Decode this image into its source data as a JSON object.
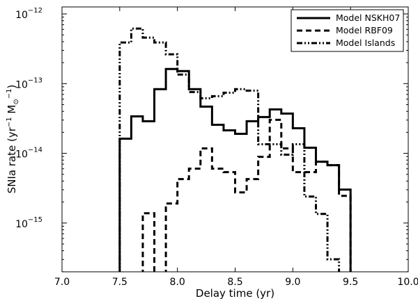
{
  "chart_data": {
    "type": "line",
    "subtype": "step-histogram",
    "xlabel": "Delay time (yr)",
    "ylabel_parts": {
      "main": "SNIa rate (yr",
      "exp1": "−1",
      "mid": " M",
      "sun": "⊙",
      "exp2": "−1",
      "end": ")"
    },
    "xlim": [
      7.0,
      10.0
    ],
    "ylim_log10": [
      -15.7,
      -11.9
    ],
    "yscale": "log",
    "x_ticks": [
      {
        "value": 7.0,
        "label": "7.0"
      },
      {
        "value": 7.5,
        "label": "7.5"
      },
      {
        "value": 8.0,
        "label": "8.0"
      },
      {
        "value": 8.5,
        "label": "8.5"
      },
      {
        "value": 9.0,
        "label": "9.0"
      },
      {
        "value": 9.5,
        "label": "9.5"
      },
      {
        "value": 10.0,
        "label": "10.0"
      }
    ],
    "y_ticks": [
      {
        "exp": -15,
        "base": "10",
        "sup": "−15"
      },
      {
        "exp": -14,
        "base": "10",
        "sup": "−14"
      },
      {
        "exp": -13,
        "base": "10",
        "sup": "−13"
      },
      {
        "exp": -12,
        "base": "10",
        "sup": "−12"
      }
    ],
    "legend_position": "top-right",
    "series": [
      {
        "name": "Model NSKH07",
        "style": "solid",
        "bins": [
          {
            "x0": 7.5,
            "x1": 7.6,
            "log10": -13.79
          },
          {
            "x0": 7.6,
            "x1": 7.7,
            "log10": -13.47
          },
          {
            "x0": 7.7,
            "x1": 7.8,
            "log10": -13.54
          },
          {
            "x0": 7.8,
            "x1": 7.9,
            "log10": -13.08
          },
          {
            "x0": 7.9,
            "x1": 8.0,
            "log10": -12.79
          },
          {
            "x0": 8.0,
            "x1": 8.1,
            "log10": -12.82
          },
          {
            "x0": 8.1,
            "x1": 8.2,
            "log10": -13.08
          },
          {
            "x0": 8.2,
            "x1": 8.3,
            "log10": -13.33
          },
          {
            "x0": 8.3,
            "x1": 8.4,
            "log10": -13.59
          },
          {
            "x0": 8.4,
            "x1": 8.5,
            "log10": -13.67
          },
          {
            "x0": 8.5,
            "x1": 8.6,
            "log10": -13.72
          },
          {
            "x0": 8.6,
            "x1": 8.7,
            "log10": -13.54
          },
          {
            "x0": 8.7,
            "x1": 8.8,
            "log10": -13.48
          },
          {
            "x0": 8.8,
            "x1": 8.9,
            "log10": -13.37
          },
          {
            "x0": 8.9,
            "x1": 9.0,
            "log10": -13.43
          },
          {
            "x0": 9.0,
            "x1": 9.1,
            "log10": -13.64
          },
          {
            "x0": 9.1,
            "x1": 9.2,
            "log10": -13.92
          },
          {
            "x0": 9.2,
            "x1": 9.3,
            "log10": -14.12
          },
          {
            "x0": 9.3,
            "x1": 9.4,
            "log10": -14.17
          },
          {
            "x0": 9.4,
            "x1": 9.5,
            "log10": -14.52
          }
        ]
      },
      {
        "name": "Model RBF09",
        "style": "dashed",
        "bins": [
          {
            "x0": 7.7,
            "x1": 7.8,
            "log10": -14.86
          },
          {
            "x0": 7.9,
            "x1": 8.0,
            "log10": -14.72
          },
          {
            "x0": 8.0,
            "x1": 8.1,
            "log10": -14.37
          },
          {
            "x0": 8.1,
            "x1": 8.2,
            "log10": -14.22
          },
          {
            "x0": 8.2,
            "x1": 8.3,
            "log10": -13.93
          },
          {
            "x0": 8.3,
            "x1": 8.4,
            "log10": -14.22
          },
          {
            "x0": 8.4,
            "x1": 8.5,
            "log10": -14.27
          },
          {
            "x0": 8.5,
            "x1": 8.6,
            "log10": -14.56
          },
          {
            "x0": 8.6,
            "x1": 8.7,
            "log10": -14.37
          },
          {
            "x0": 8.7,
            "x1": 8.8,
            "log10": -14.05
          },
          {
            "x0": 8.8,
            "x1": 8.9,
            "log10": -13.52
          },
          {
            "x0": 8.9,
            "x1": 9.0,
            "log10": -13.93
          },
          {
            "x0": 9.0,
            "x1": 9.1,
            "log10": -14.27
          },
          {
            "x0": 9.1,
            "x1": 9.2,
            "log10": -14.27
          },
          {
            "x0": 9.2,
            "x1": 9.3,
            "log10": -14.12
          },
          {
            "x0": 9.3,
            "x1": 9.4,
            "log10": -14.17
          },
          {
            "x0": 9.4,
            "x1": 9.5,
            "log10": -14.61
          }
        ]
      },
      {
        "name": "Model Islands",
        "style": "dashdot",
        "bins": [
          {
            "x0": 7.5,
            "x1": 7.6,
            "log10": -12.41
          },
          {
            "x0": 7.6,
            "x1": 7.7,
            "log10": -12.21
          },
          {
            "x0": 7.7,
            "x1": 7.8,
            "log10": -12.34
          },
          {
            "x0": 7.8,
            "x1": 7.9,
            "log10": -12.41
          },
          {
            "x0": 7.9,
            "x1": 8.0,
            "log10": -12.58
          },
          {
            "x0": 8.0,
            "x1": 8.1,
            "log10": -12.87
          },
          {
            "x0": 8.1,
            "x1": 8.2,
            "log10": -13.12
          },
          {
            "x0": 8.2,
            "x1": 8.3,
            "log10": -13.21
          },
          {
            "x0": 8.3,
            "x1": 8.4,
            "log10": -13.18
          },
          {
            "x0": 8.4,
            "x1": 8.5,
            "log10": -13.13
          },
          {
            "x0": 8.5,
            "x1": 8.6,
            "log10": -13.08
          },
          {
            "x0": 8.6,
            "x1": 8.7,
            "log10": -13.1
          },
          {
            "x0": 8.7,
            "x1": 8.8,
            "log10": -13.87
          },
          {
            "x0": 8.8,
            "x1": 8.9,
            "log10": -13.87
          },
          {
            "x0": 8.9,
            "x1": 9.0,
            "log10": -14.02
          },
          {
            "x0": 9.0,
            "x1": 9.1,
            "log10": -13.87
          },
          {
            "x0": 9.1,
            "x1": 9.2,
            "log10": -14.62
          },
          {
            "x0": 9.2,
            "x1": 9.3,
            "log10": -14.87
          },
          {
            "x0": 9.3,
            "x1": 9.4,
            "log10": -15.52
          }
        ]
      }
    ]
  }
}
